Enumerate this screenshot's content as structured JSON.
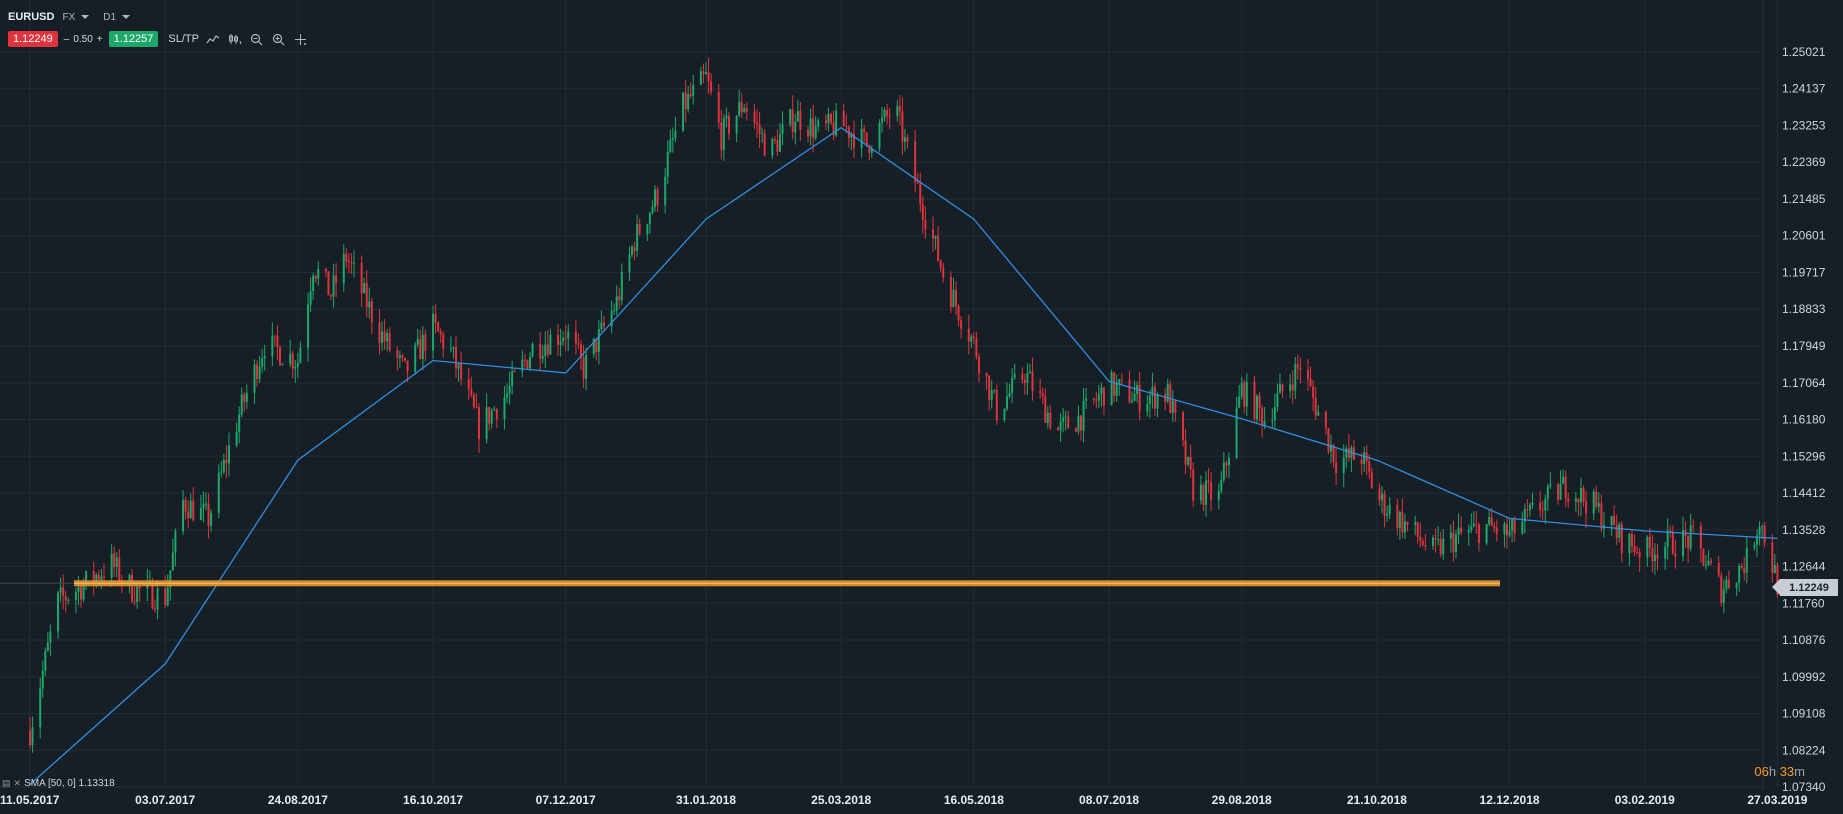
{
  "header": {
    "symbol": "EURUSD",
    "market": "FX",
    "timeframe": "D1"
  },
  "trade": {
    "bid": "1.12249",
    "minus": "–",
    "spread": "0.50",
    "plus": "+",
    "ask": "1.12257",
    "sltp": "SL/TP"
  },
  "indicator": {
    "label": "SMA [50, 0] 1.13318"
  },
  "timer": {
    "hours": "06",
    "h_unit": "h",
    "minutes": "33",
    "m_unit": "m"
  },
  "current_price": "1.12249",
  "colors": {
    "up": "#1ca86a",
    "down": "#e0333d",
    "sma": "#2f8ee0",
    "support": "#e8962a"
  },
  "icons": [
    "line-chart-icon",
    "candles-icon",
    "zoom-out-icon",
    "zoom-in-icon",
    "crosshair-icon"
  ],
  "chart_data": {
    "type": "line",
    "symbol": "EURUSD",
    "y_ticks": [
      "1.25021",
      "1.24137",
      "1.23253",
      "1.22369",
      "1.21485",
      "1.20601",
      "1.19717",
      "1.18833",
      "1.17949",
      "1.17064",
      "1.16180",
      "1.15296",
      "1.14412",
      "1.13528",
      "1.12644",
      "1.11760",
      "1.10876",
      "1.09992",
      "1.09108",
      "1.08224",
      "1.07340"
    ],
    "x_ticks": [
      "11.05.2017",
      "03.07.2017",
      "24.08.2017",
      "16.10.2017",
      "07.12.2017",
      "31.01.2018",
      "25.03.2018",
      "16.05.2018",
      "08.07.2018",
      "29.08.2018",
      "21.10.2018",
      "12.12.2018",
      "03.02.2019",
      "27.03.2019"
    ],
    "ylim": [
      1.0734,
      1.2546
    ],
    "grid": true,
    "support_level": 1.1224,
    "close": [
      [
        "11.05.2017",
        1.087
      ],
      [
        "22.05.2017",
        1.118
      ],
      [
        "01.06.2017",
        1.122
      ],
      [
        "12.06.2017",
        1.127
      ],
      [
        "20.06.2017",
        1.121
      ],
      [
        "03.07.2017",
        1.119
      ],
      [
        "10.07.2017",
        1.142
      ],
      [
        "20.07.2017",
        1.138
      ],
      [
        "01.08.2017",
        1.163
      ],
      [
        "11.08.2017",
        1.18
      ],
      [
        "24.08.2017",
        1.176
      ],
      [
        "30.08.2017",
        1.199
      ],
      [
        "06.09.2017",
        1.192
      ],
      [
        "12.09.2017",
        1.201
      ],
      [
        "25.09.2017",
        1.183
      ],
      [
        "05.10.2017",
        1.173
      ],
      [
        "16.10.2017",
        1.184
      ],
      [
        "23.10.2017",
        1.178
      ],
      [
        "03.11.2017",
        1.16
      ],
      [
        "14.11.2017",
        1.168
      ],
      [
        "24.11.2017",
        1.179
      ],
      [
        "07.12.2017",
        1.183
      ],
      [
        "14.12.2017",
        1.174
      ],
      [
        "27.12.2017",
        1.19
      ],
      [
        "03.01.2018",
        1.205
      ],
      [
        "12.01.2018",
        1.216
      ],
      [
        "22.01.2018",
        1.237
      ],
      [
        "31.01.2018",
        1.244
      ],
      [
        "06.02.2018",
        1.23
      ],
      [
        "15.02.2018",
        1.238
      ],
      [
        "25.02.2018",
        1.226
      ],
      [
        "07.03.2018",
        1.235
      ],
      [
        "16.03.2018",
        1.231
      ],
      [
        "25.03.2018",
        1.233
      ],
      [
        "04.04.2018",
        1.228
      ],
      [
        "15.04.2018",
        1.237
      ],
      [
        "25.04.2018",
        1.215
      ],
      [
        "05.05.2018",
        1.195
      ],
      [
        "16.05.2018",
        1.18
      ],
      [
        "25.05.2018",
        1.164
      ],
      [
        "05.06.2018",
        1.173
      ],
      [
        "18.06.2018",
        1.159
      ],
      [
        "28.06.2018",
        1.163
      ],
      [
        "08.07.2018",
        1.17
      ],
      [
        "20.07.2018",
        1.167
      ],
      [
        "31.07.2018",
        1.168
      ],
      [
        "10.08.2018",
        1.145
      ],
      [
        "20.08.2018",
        1.143
      ],
      [
        "29.08.2018",
        1.169
      ],
      [
        "07.09.2018",
        1.162
      ],
      [
        "21.09.2018",
        1.175
      ],
      [
        "05.10.2018",
        1.152
      ],
      [
        "15.10.2018",
        1.153
      ],
      [
        "21.10.2018",
        1.143
      ],
      [
        "02.11.2018",
        1.136
      ],
      [
        "12.11.2018",
        1.13
      ],
      [
        "23.11.2018",
        1.134
      ],
      [
        "03.12.2018",
        1.136
      ],
      [
        "12.12.2018",
        1.134
      ],
      [
        "24.12.2018",
        1.141
      ],
      [
        "03.01.2019",
        1.146
      ],
      [
        "14.01.2019",
        1.141
      ],
      [
        "25.01.2019",
        1.133
      ],
      [
        "03.02.2019",
        1.13
      ],
      [
        "12.02.2019",
        1.132
      ],
      [
        "22.02.2019",
        1.133
      ],
      [
        "05.03.2019",
        1.121
      ],
      [
        "15.03.2019",
        1.128
      ],
      [
        "20.03.2019",
        1.138
      ],
      [
        "27.03.2019",
        1.1225
      ]
    ],
    "sma_50": [
      [
        "11.05.2017",
        1.074
      ],
      [
        "03.07.2017",
        1.103
      ],
      [
        "24.08.2017",
        1.152
      ],
      [
        "16.10.2017",
        1.176
      ],
      [
        "07.12.2017",
        1.173
      ],
      [
        "31.01.2018",
        1.21
      ],
      [
        "25.03.2018",
        1.232
      ],
      [
        "16.05.2018",
        1.21
      ],
      [
        "08.07.2018",
        1.171
      ],
      [
        "29.08.2018",
        1.162
      ],
      [
        "21.10.2018",
        1.152
      ],
      [
        "12.12.2018",
        1.138
      ],
      [
        "03.02.2019",
        1.135
      ],
      [
        "27.03.2019",
        1.1332
      ]
    ]
  }
}
